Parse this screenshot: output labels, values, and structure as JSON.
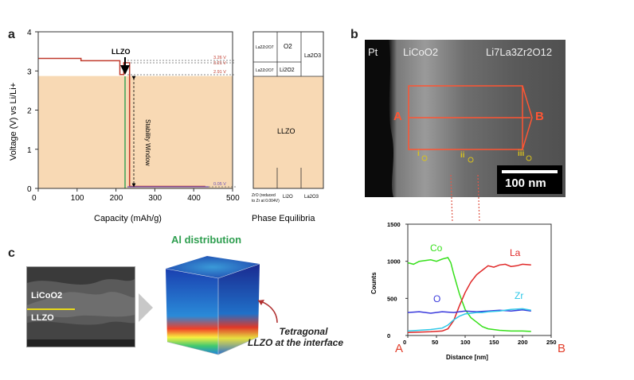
{
  "panel_a": {
    "label": "a",
    "ylabel": "Voltage (V) vs Li/Li+",
    "xlabel": "Capacity (mAh/g)",
    "phase_label": "Phase Equilibria",
    "llzo_top_label": "LLZO",
    "window_label": "Stability Window",
    "region_label": "LLZO",
    "voltage_marks": [
      "3.26 V",
      "3.21 V",
      "2.91 V",
      "0.05 V"
    ],
    "phase_cells_top": [
      "La2Zr2O7",
      "O2",
      "La2O3"
    ],
    "phase_cells_mid": [
      "La2Zr2O7",
      "Li2O2"
    ],
    "phase_bottom": [
      "ZrO (reduced",
      "to Zr at 0.004V)",
      "Li2O",
      "La2O3"
    ],
    "chart_data": {
      "type": "line",
      "xlim": [
        0,
        500
      ],
      "ylim": [
        0,
        4
      ],
      "x_ticks": [
        "0",
        "100",
        "200",
        "300",
        "400",
        "500"
      ],
      "y_ticks": [
        "0",
        "1",
        "2",
        "3",
        "4"
      ],
      "series": [
        {
          "name": "voltage profile",
          "x": [
            0,
            110,
            110,
            210,
            210,
            220,
            220,
            235,
            235,
            430
          ],
          "y": [
            3.32,
            3.32,
            3.26,
            3.26,
            2.91,
            2.91,
            3.21,
            3.21,
            0.05,
            0.05
          ]
        }
      ],
      "stability_window": [
        0.05,
        2.91
      ]
    }
  },
  "panel_b": {
    "label": "b",
    "tem_labels": [
      "Pt",
      "LiCoO2",
      "Li7La3Zr2O12"
    ],
    "point_a": "A",
    "point_b": "B",
    "points": [
      "i",
      "ii",
      "iii"
    ],
    "scalebar": "100 nm",
    "bottom_a": "A",
    "bottom_b": "B",
    "chart_data": {
      "type": "line",
      "xlabel": "Distance [nm]",
      "ylabel": "Counts",
      "xlim": [
        0,
        250
      ],
      "ylim": [
        0,
        1500
      ],
      "x_ticks": [
        "0",
        "50",
        "100",
        "150",
        "200",
        "250"
      ],
      "y_ticks": [
        "0",
        "500",
        "1000",
        "1500"
      ],
      "series": [
        {
          "name": "Co",
          "color": "#36e01a",
          "x": [
            0,
            10,
            20,
            30,
            40,
            50,
            60,
            70,
            75,
            80,
            90,
            100,
            110,
            120,
            130,
            140,
            160,
            180,
            200,
            215
          ],
          "y": [
            980,
            960,
            1000,
            1010,
            1020,
            1000,
            1030,
            1050,
            980,
            830,
            560,
            350,
            240,
            180,
            120,
            90,
            70,
            60,
            60,
            55
          ]
        },
        {
          "name": "La",
          "color": "#e02828",
          "x": [
            0,
            20,
            40,
            60,
            70,
            80,
            90,
            100,
            110,
            120,
            130,
            140,
            150,
            160,
            170,
            180,
            190,
            200,
            215
          ],
          "y": [
            40,
            45,
            50,
            60,
            90,
            200,
            400,
            580,
            720,
            820,
            880,
            940,
            920,
            950,
            960,
            930,
            940,
            960,
            950
          ]
        },
        {
          "name": "O",
          "color": "#3a3adc",
          "x": [
            0,
            20,
            40,
            60,
            80,
            100,
            120,
            140,
            160,
            180,
            200,
            215
          ],
          "y": [
            310,
            320,
            300,
            320,
            310,
            330,
            320,
            330,
            340,
            330,
            345,
            330
          ]
        },
        {
          "name": "Zr",
          "color": "#2ec8e8",
          "x": [
            0,
            40,
            60,
            70,
            80,
            90,
            100,
            110,
            120,
            130,
            140,
            160,
            180,
            200,
            215
          ],
          "y": [
            60,
            80,
            100,
            140,
            210,
            260,
            290,
            300,
            310,
            310,
            320,
            330,
            350,
            360,
            340
          ]
        }
      ]
    }
  },
  "panel_c": {
    "label": "c",
    "sem_top": "LiCoO2",
    "sem_bottom": "LLZO",
    "title": "Al distribution",
    "note_line1": "Tetragonal",
    "note_line2": "LLZO at the interface"
  },
  "colors": {
    "accent_green": "#2e9e4f",
    "red": "#e23c28",
    "region_fill": "#f8d9b4"
  }
}
